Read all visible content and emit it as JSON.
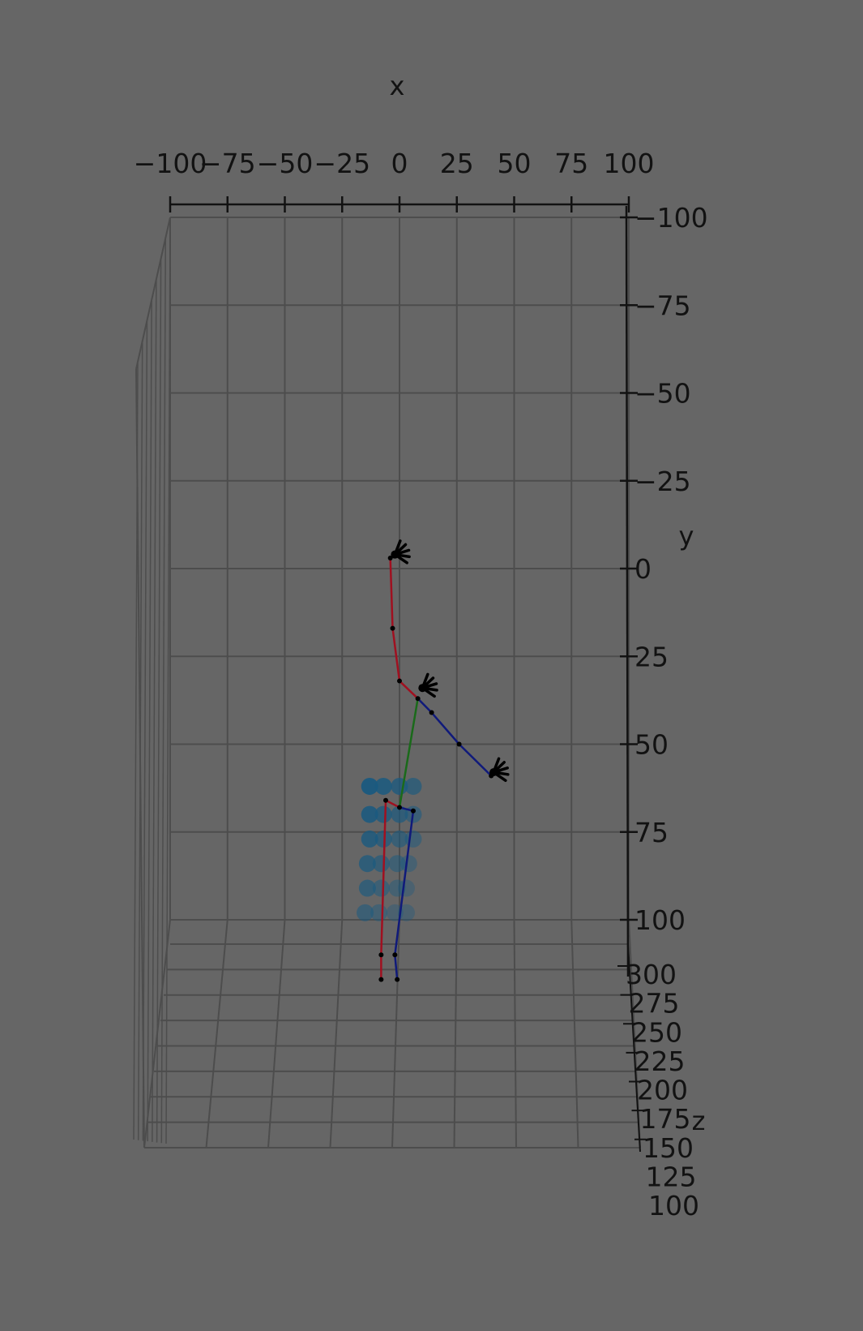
{
  "chart_data": {
    "type": "scatter",
    "projection": "3d",
    "background_color": "#666666",
    "grid": true,
    "axes": {
      "x": {
        "label": "x",
        "range": [
          -100,
          100
        ],
        "ticks": [
          -100,
          -75,
          -50,
          -25,
          0,
          25,
          50,
          75,
          100
        ],
        "tick_labels": [
          "−100",
          "−75",
          "−50",
          "−25",
          "0",
          "25",
          "50",
          "75",
          "100"
        ]
      },
      "y": {
        "label": "y",
        "range": [
          -100,
          100
        ],
        "direction": "down",
        "ticks": [
          -100,
          -75,
          -50,
          -25,
          0,
          25,
          50,
          75,
          100
        ],
        "tick_labels": [
          "−100",
          "−75",
          "−50",
          "−25",
          "0",
          "25",
          "50",
          "75",
          "100"
        ]
      },
      "z": {
        "label": "z",
        "range": [
          100,
          300
        ],
        "ticks": [
          300,
          275,
          250,
          225,
          200,
          175,
          150,
          125,
          100
        ],
        "tick_labels": [
          "300",
          "275",
          "250",
          "225",
          "200",
          "175",
          "150",
          "125",
          "100"
        ]
      }
    },
    "skeleton": {
      "colors": {
        "left": "#a01020",
        "right": "#101a7a",
        "spine": "#1a6a1a",
        "hands": "#000000"
      },
      "joints": {
        "l_wrist": [
          -4,
          -3
        ],
        "l_elbow": [
          -3,
          17
        ],
        "l_shoulder": [
          0,
          32
        ],
        "neck": [
          8,
          37
        ],
        "r_shoulder": [
          14,
          41
        ],
        "r_elbow": [
          26,
          50
        ],
        "r_wrist": [
          40,
          59
        ],
        "pelvis": [
          0,
          68
        ],
        "l_hip": [
          -6,
          66
        ],
        "r_hip": [
          6,
          69
        ],
        "l_knee": [
          -8,
          110
        ],
        "r_knee": [
          -2,
          110
        ],
        "l_ankle": [
          -8,
          117
        ],
        "r_ankle": [
          -1,
          117
        ]
      },
      "bones": [
        [
          "l_wrist",
          "l_elbow",
          "left"
        ],
        [
          "l_elbow",
          "l_shoulder",
          "left"
        ],
        [
          "l_shoulder",
          "neck",
          "left"
        ],
        [
          "neck",
          "r_shoulder",
          "right"
        ],
        [
          "r_shoulder",
          "r_elbow",
          "right"
        ],
        [
          "r_elbow",
          "r_wrist",
          "right"
        ],
        [
          "neck",
          "pelvis",
          "spine"
        ],
        [
          "pelvis",
          "l_hip",
          "left"
        ],
        [
          "pelvis",
          "r_hip",
          "right"
        ],
        [
          "l_hip",
          "l_knee",
          "left"
        ],
        [
          "r_hip",
          "r_knee",
          "right"
        ],
        [
          "l_knee",
          "l_ankle",
          "left"
        ],
        [
          "r_knee",
          "r_ankle",
          "right"
        ]
      ],
      "hand_clusters": [
        {
          "name": "left-hand",
          "center": [
            -2,
            -4
          ]
        },
        {
          "name": "right-hand-upper",
          "center": [
            10,
            34
          ]
        },
        {
          "name": "right-hand-lower",
          "center": [
            41,
            58
          ]
        }
      ]
    },
    "marker_grid": {
      "color": "#1a5a80",
      "rows": [
        [
          -13,
          -7,
          0,
          6
        ],
        [
          -13,
          -7,
          0,
          6
        ],
        [
          -13,
          -7,
          0,
          6
        ],
        [
          -14,
          -8,
          -1,
          4
        ],
        [
          -14,
          -8,
          -1,
          3
        ],
        [
          -15,
          -9,
          -2,
          3
        ]
      ],
      "row_y": [
        62,
        70,
        77,
        84,
        91,
        98
      ]
    }
  }
}
